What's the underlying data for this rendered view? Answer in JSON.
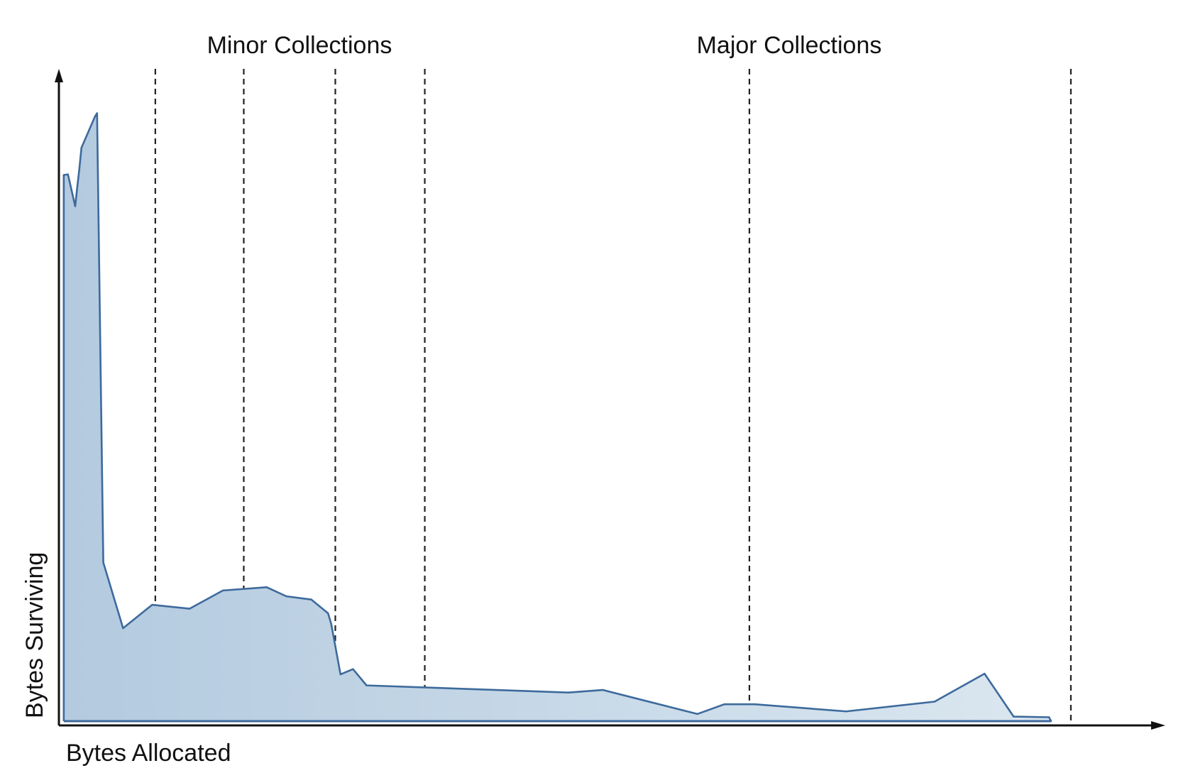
{
  "chart_data": {
    "type": "area",
    "xlabel": "Bytes Allocated",
    "ylabel": "Bytes Surviving",
    "xlim": [
      0,
      100
    ],
    "ylim": [
      0,
      100
    ],
    "grid": false,
    "sections": [
      {
        "name": "Minor Collections",
        "x_center": 22.3
      },
      {
        "name": "Major Collections",
        "x_center": 66.8
      }
    ],
    "collection_markers": [
      9.2,
      17.7,
      26.5,
      35.1,
      66.3,
      97.2
    ],
    "colors": {
      "line": "#3d6a9c",
      "fill_dark": "#b3cadf",
      "fill_light": "#dbe7f0",
      "axis": "#111111",
      "marker": "#222222"
    },
    "series": [
      {
        "x": [
          0.4,
          0.8,
          1.5,
          1.7,
          1.9,
          2.1,
          3.4,
          3.6,
          4.2,
          6.1,
          8.9,
          12.5,
          15.7,
          19.9,
          21.8,
          24.2,
          25.8,
          26.1,
          27.0,
          28.2,
          29.5,
          48.9,
          52.2,
          61.3,
          63.9,
          66.8,
          75.6,
          84.1,
          88.9,
          91.7,
          95.1,
          95.3
        ],
        "y": [
          84.0,
          84.1,
          79.2,
          82.2,
          85.0,
          88.2,
          93.0,
          93.5,
          24.4,
          14.3,
          17.9,
          17.3,
          20.1,
          20.6,
          19.2,
          18.7,
          16.6,
          15.0,
          7.2,
          8.0,
          5.5,
          4.4,
          4.8,
          1.1,
          2.6,
          2.6,
          1.5,
          3.0,
          7.3,
          0.7,
          0.6,
          0.0
        ]
      }
    ]
  }
}
